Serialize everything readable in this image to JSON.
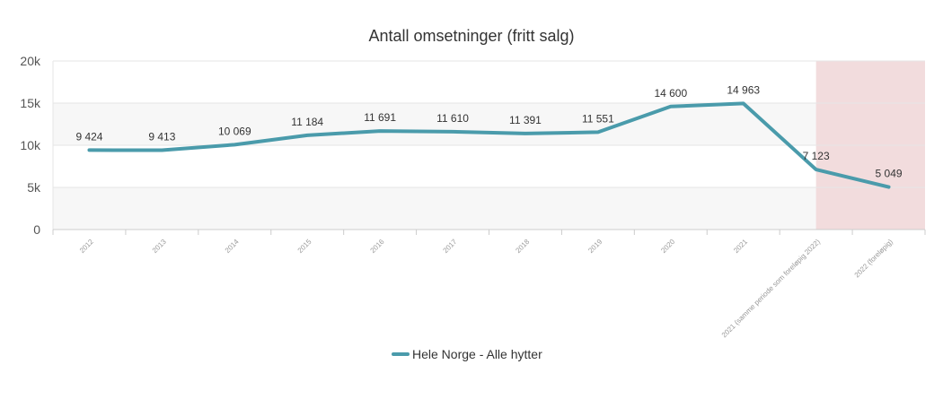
{
  "chart_data": {
    "type": "line",
    "title": "Antall omsetninger (fritt salg)",
    "categories": [
      "2012",
      "2013",
      "2014",
      "2015",
      "2016",
      "2017",
      "2018",
      "2019",
      "2020",
      "2021",
      "2021 (samme periode som foreløpig 2022)",
      "2022 (foreløpig)"
    ],
    "series": [
      {
        "name": "Hele Norge - Alle hytter",
        "values": [
          9424,
          9413,
          10069,
          11184,
          11691,
          11610,
          11391,
          11551,
          14600,
          14963,
          7123,
          5049
        ],
        "labels": [
          "9 424",
          "9 413",
          "10 069",
          "11 184",
          "11 691",
          "11 610",
          "11 391",
          "11 551",
          "14 600",
          "14 963",
          "7 123",
          "5 049"
        ],
        "color": "#4a9bab"
      }
    ],
    "ylim": [
      0,
      20000
    ],
    "yticks": [
      0,
      5000,
      10000,
      15000,
      20000
    ],
    "ytick_labels": [
      "0",
      "5k",
      "10k",
      "15k",
      "20k"
    ],
    "xlabel": "",
    "ylabel": "",
    "grid": true,
    "legend": "bottom-center",
    "highlight_region": {
      "from_category_index": 10,
      "to_category_index": 11,
      "color": "#f2dcdd"
    },
    "band_color": "#f7f7f7"
  }
}
